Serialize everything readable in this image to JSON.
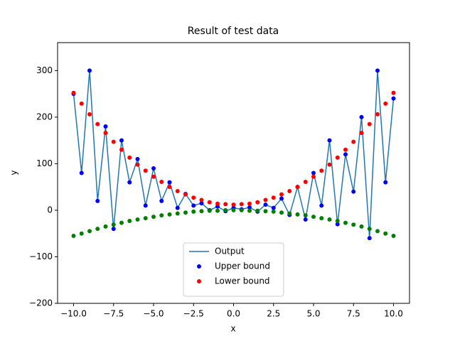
{
  "chart_data": {
    "type": "scatter",
    "title": "Result of test data",
    "xlabel": "x",
    "ylabel": "y",
    "x": [
      -10,
      -9.5,
      -9,
      -8.5,
      -8,
      -7.5,
      -7,
      -6.5,
      -6,
      -5.5,
      -5,
      -4.5,
      -4,
      -3.5,
      -3,
      -2.5,
      -2,
      -1.5,
      -1,
      -0.5,
      0,
      0.5,
      1,
      1.5,
      2,
      2.5,
      3,
      3.5,
      4,
      4.5,
      5,
      5.5,
      6,
      6.5,
      7,
      7.5,
      8,
      8.5,
      9,
      9.5,
      10
    ],
    "series": [
      {
        "name": "Output",
        "color": "#1f77b4",
        "style": "line",
        "values": [
          250,
          80,
          300,
          20,
          180,
          -40,
          150,
          60,
          110,
          10,
          90,
          20,
          60,
          5,
          35,
          10,
          15,
          0,
          8,
          -2,
          5,
          2,
          6,
          -3,
          12,
          5,
          25,
          -10,
          50,
          -20,
          80,
          10,
          150,
          -30,
          120,
          40,
          200,
          -60,
          300,
          60,
          240
        ]
      },
      {
        "name": "Upper bound",
        "color": "#0000ff",
        "style": "points",
        "values": [
          250,
          80,
          300,
          20,
          180,
          -40,
          150,
          60,
          110,
          10,
          90,
          20,
          60,
          5,
          35,
          10,
          15,
          0,
          8,
          -2,
          5,
          2,
          6,
          -3,
          12,
          5,
          25,
          -10,
          50,
          -20,
          80,
          10,
          150,
          -30,
          120,
          40,
          200,
          -60,
          300,
          60,
          240
        ]
      },
      {
        "name": "Lower bound",
        "color": "#ff0000",
        "style": "points",
        "values": [
          252,
          229,
          206,
          185,
          166,
          147,
          130,
          113,
          98,
          85,
          72,
          61,
          50,
          41,
          34,
          27,
          22,
          17,
          14,
          13,
          12,
          13,
          14,
          17,
          22,
          27,
          34,
          41,
          50,
          61,
          72,
          85,
          98,
          113,
          130,
          147,
          166,
          185,
          206,
          229,
          252
        ]
      },
      {
        "color": "#008000",
        "style": "points",
        "values": [
          -55,
          -50,
          -45,
          -40,
          -35,
          -31,
          -27,
          -23,
          -20,
          -17,
          -14,
          -11,
          -9,
          -7,
          -5,
          -3,
          -2,
          -1,
          -1,
          0,
          0,
          0,
          -1,
          -1,
          -2,
          -3,
          -5,
          -7,
          -9,
          -11,
          -14,
          -17,
          -20,
          -23,
          -27,
          -31,
          -35,
          -40,
          -45,
          -50,
          -55
        ]
      }
    ],
    "xlim": [
      -11,
      11
    ],
    "xticks": [
      {
        "value": -10,
        "label": "−10.0"
      },
      {
        "value": -7.5,
        "label": "−7.5"
      },
      {
        "value": -5,
        "label": "−5.0"
      },
      {
        "value": -2.5,
        "label": "−2.5"
      },
      {
        "value": 0,
        "label": "0.0"
      },
      2.5,
      {
        "value": 5,
        "label": "5.0"
      },
      7.5,
      {
        "value": 10,
        "label": "10.0"
      }
    ],
    "ylim": [
      -200,
      360
    ],
    "yticks": [
      {
        "value": -200,
        "label": "−200"
      },
      {
        "value": -100,
        "label": "−100"
      },
      0,
      100,
      200,
      300
    ],
    "legend": "lower center"
  }
}
